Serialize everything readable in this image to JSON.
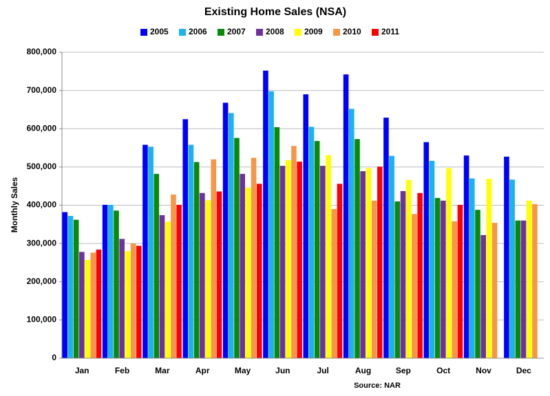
{
  "chart_data": {
    "type": "bar",
    "title": "Existing Home Sales (NSA)",
    "y_label": "Monthly Sales",
    "source": "Source: NAR",
    "categories": [
      "Jan",
      "Feb",
      "Mar",
      "Apr",
      "May",
      "Jun",
      "Jul",
      "Aug",
      "Sep",
      "Oct",
      "Nov",
      "Dec"
    ],
    "series": [
      {
        "name": "2005",
        "color": "#0000ff",
        "values": [
          382000,
          401000,
          558000,
          625000,
          668000,
          752000,
          690000,
          742000,
          629000,
          565000,
          530000,
          527000
        ]
      },
      {
        "name": "2006",
        "color": "#1ab2f0",
        "values": [
          372000,
          401000,
          553000,
          558000,
          641000,
          698000,
          605000,
          652000,
          529000,
          516000,
          470000,
          467000
        ]
      },
      {
        "name": "2007",
        "color": "#0a8a0a",
        "values": [
          362000,
          386000,
          482000,
          513000,
          576000,
          604000,
          568000,
          573000,
          410000,
          419000,
          388000,
          360000
        ]
      },
      {
        "name": "2008",
        "color": "#7030a0",
        "values": [
          278000,
          312000,
          374000,
          432000,
          482000,
          503000,
          503000,
          489000,
          437000,
          412000,
          322000,
          360000
        ]
      },
      {
        "name": "2009",
        "color": "#ffff00",
        "values": [
          257000,
          280000,
          357000,
          413000,
          446000,
          518000,
          531000,
          497000,
          466000,
          497000,
          469000,
          412000
        ]
      },
      {
        "name": "2010",
        "color": "#f79646",
        "values": [
          276000,
          300000,
          428000,
          520000,
          524000,
          555000,
          390000,
          412000,
          377000,
          358000,
          354000,
          403000
        ]
      },
      {
        "name": "2011",
        "color": "#ff0000",
        "values": [
          284000,
          294000,
          401000,
          436000,
          456000,
          514000,
          456000,
          501000,
          432000,
          401000,
          null,
          null
        ]
      }
    ],
    "ylim": [
      0,
      800000
    ],
    "yticks": [
      0,
      {
        "value": 100000,
        "label": "100,000"
      },
      {
        "value": 200000,
        "label": "200,000"
      },
      {
        "value": 300000,
        "label": "300,000"
      },
      {
        "value": 400000,
        "label": "400,000"
      },
      {
        "value": 500000,
        "label": "500,000"
      },
      {
        "value": 600000,
        "label": "600,000"
      },
      {
        "value": 700000,
        "label": "700,000"
      },
      {
        "value": 800000,
        "label": "800,000"
      }
    ],
    "grid": true
  }
}
